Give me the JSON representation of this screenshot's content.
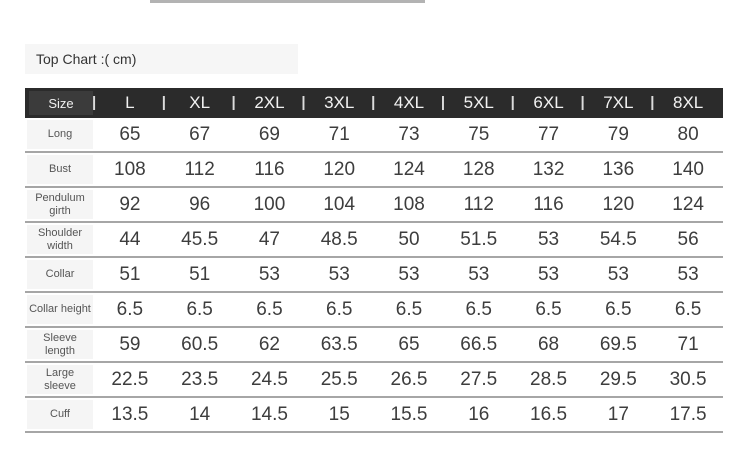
{
  "page": {
    "title_label": "Top Chart :( cm)"
  },
  "header": {
    "separator_glyph": "|"
  },
  "chart_data": {
    "type": "table",
    "title": "Top Chart :( cm)",
    "units": "cm",
    "columns": [
      "Size",
      "L",
      "XL",
      "2XL",
      "3XL",
      "4XL",
      "5XL",
      "6XL",
      "7XL",
      "8XL"
    ],
    "rows": [
      {
        "label": "Long",
        "values": [
          65,
          67,
          69,
          71,
          73,
          75,
          77,
          79,
          80
        ]
      },
      {
        "label": "Bust",
        "values": [
          108,
          112,
          116,
          120,
          124,
          128,
          132,
          136,
          140
        ]
      },
      {
        "label": "Pendulum girth",
        "values": [
          92,
          96,
          100,
          104,
          108,
          112,
          116,
          120,
          124
        ]
      },
      {
        "label": "Shoulder width",
        "values": [
          44,
          45.5,
          47,
          48.5,
          50,
          51.5,
          53,
          54.5,
          56
        ]
      },
      {
        "label": "Collar",
        "values": [
          51,
          51,
          53,
          53,
          53,
          53,
          53,
          53,
          53
        ]
      },
      {
        "label": "Collar height",
        "values": [
          6.5,
          6.5,
          6.5,
          6.5,
          6.5,
          6.5,
          6.5,
          6.5,
          6.5
        ]
      },
      {
        "label": "Sleeve length",
        "values": [
          59,
          60.5,
          62,
          63.5,
          65,
          66.5,
          68,
          69.5,
          71
        ]
      },
      {
        "label": "Large sleeve",
        "values": [
          22.5,
          23.5,
          24.5,
          25.5,
          26.5,
          27.5,
          28.5,
          29.5,
          30.5
        ]
      },
      {
        "label": "Cuff",
        "values": [
          13.5,
          14,
          14.5,
          15,
          15.5,
          16,
          16.5,
          17,
          17.5
        ]
      }
    ]
  }
}
